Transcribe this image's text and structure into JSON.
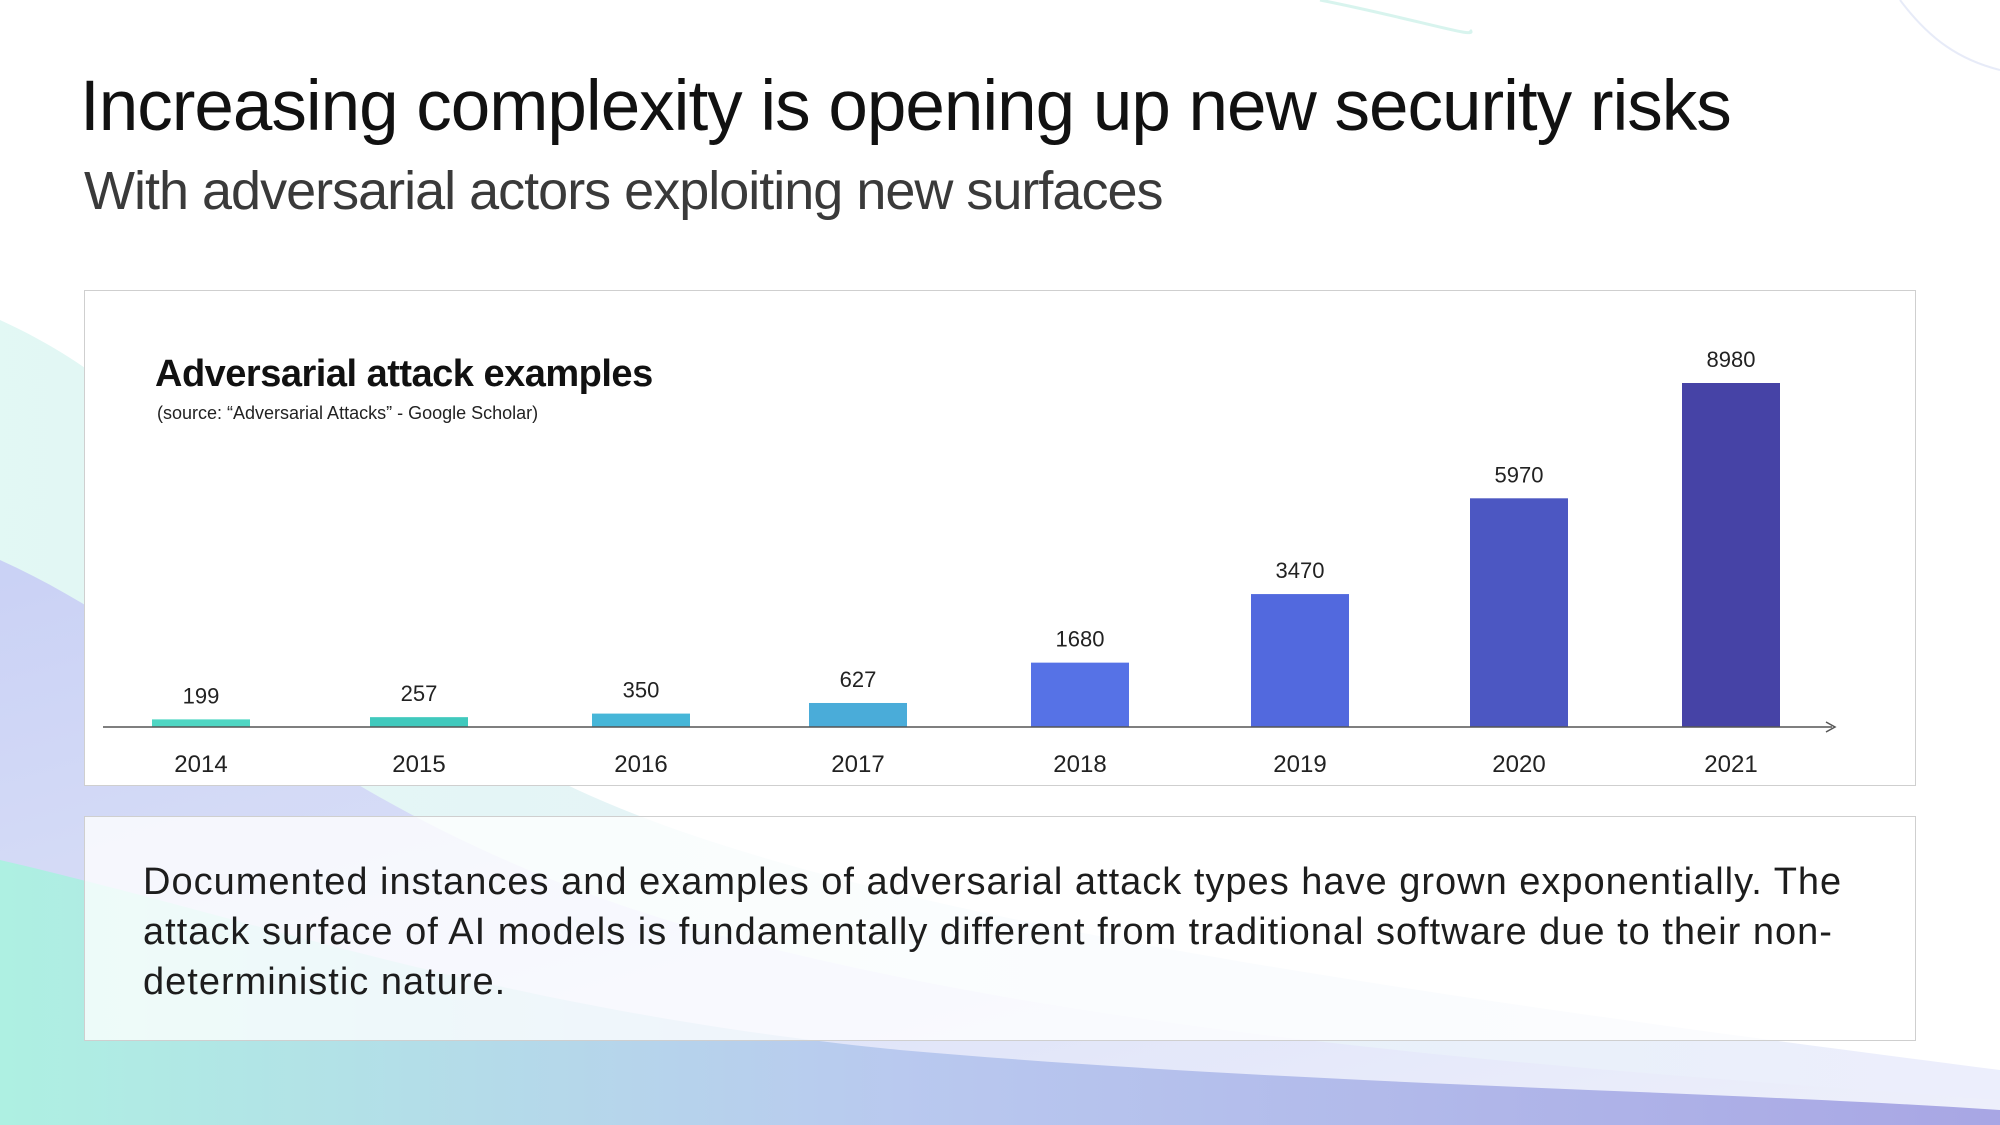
{
  "slide": {
    "title": "Increasing complexity is opening up new security risks",
    "subtitle": "With adversarial actors exploiting new surfaces"
  },
  "chart_data": {
    "type": "bar",
    "title": "Adversarial attack examples",
    "subtitle": "(source: “Adversarial Attacks” - Google Scholar)",
    "categories": [
      "2014",
      "2015",
      "2016",
      "2017",
      "2018",
      "2019",
      "2020",
      "2021"
    ],
    "values": [
      199,
      257,
      350,
      627,
      1680,
      3470,
      5970,
      8980
    ],
    "xlabel": "",
    "ylabel": "",
    "grid": false,
    "data_labels": true,
    "bar_colors": [
      "#4fd6c3",
      "#40c9bd",
      "#46b6d8",
      "#4aacd9",
      "#5672e6",
      "#5269de",
      "#4c57c2",
      "#4643a6"
    ]
  },
  "summary": {
    "text": "Documented instances and examples of adversarial attack types have grown exponentially. The attack surface of AI models is fundamentally different from traditional software due to their non-deterministic nature."
  },
  "colors": {
    "title": "#111111",
    "axis": "#555555",
    "panel_border": "#cfcfcf",
    "accent_teal": "#9ef0e0",
    "accent_violet": "#8e95e8"
  }
}
